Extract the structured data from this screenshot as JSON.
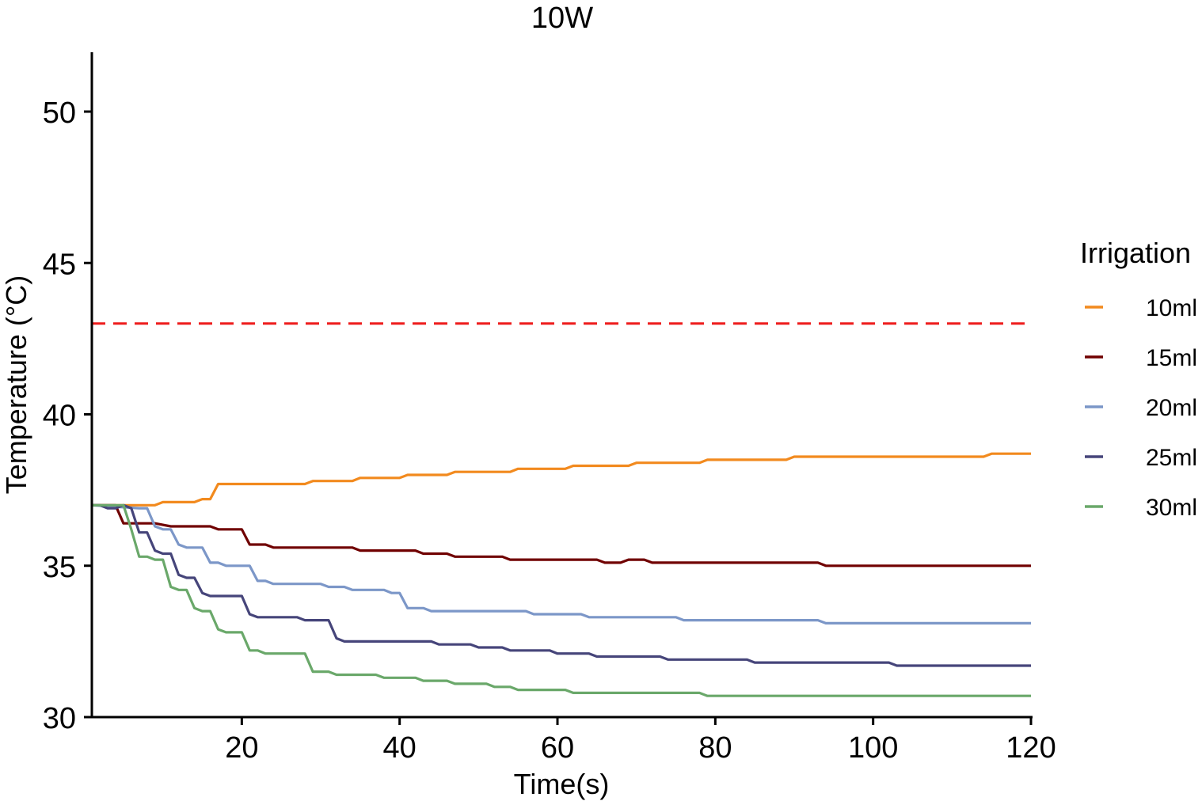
{
  "chart_data": {
    "type": "line",
    "title": "10W",
    "xlabel": "Time(s)",
    "ylabel": "Temperature (°C)",
    "xlim": [
      1,
      120
    ],
    "ylim": [
      30,
      52
    ],
    "x_ticks": [
      20,
      40,
      60,
      80,
      100,
      120
    ],
    "y_ticks": [
      30,
      35,
      40,
      45,
      50
    ],
    "grid": false,
    "legend": {
      "title": "Irrigation",
      "position": "right"
    },
    "reference_line": {
      "y": 43,
      "style": "dashed",
      "color": "#ee1c1c"
    },
    "series": [
      {
        "name": "10ml",
        "color": "#f28a1e",
        "points": [
          [
            1,
            37
          ],
          [
            9,
            37
          ],
          [
            10,
            37.1
          ],
          [
            14,
            37.1
          ],
          [
            15,
            37.2
          ],
          [
            16,
            37.2
          ],
          [
            17,
            37.7
          ],
          [
            28,
            37.7
          ],
          [
            29,
            37.8
          ],
          [
            34,
            37.8
          ],
          [
            35,
            37.9
          ],
          [
            40,
            37.9
          ],
          [
            41,
            38
          ],
          [
            46,
            38
          ],
          [
            47,
            38.1
          ],
          [
            54,
            38.1
          ],
          [
            55,
            38.2
          ],
          [
            61,
            38.2
          ],
          [
            62,
            38.3
          ],
          [
            69,
            38.3
          ],
          [
            70,
            38.4
          ],
          [
            78,
            38.4
          ],
          [
            79,
            38.5
          ],
          [
            89,
            38.5
          ],
          [
            90,
            38.6
          ],
          [
            114,
            38.6
          ],
          [
            115,
            38.7
          ],
          [
            120,
            38.7
          ]
        ]
      },
      {
        "name": "15ml",
        "color": "#700000",
        "points": [
          [
            1,
            37
          ],
          [
            4,
            37
          ],
          [
            5,
            36.4
          ],
          [
            8,
            36.4
          ],
          [
            9,
            36.4
          ],
          [
            11,
            36.3
          ],
          [
            16,
            36.3
          ],
          [
            17,
            36.2
          ],
          [
            20,
            36.2
          ],
          [
            21,
            35.7
          ],
          [
            23,
            35.7
          ],
          [
            24,
            35.6
          ],
          [
            34,
            35.6
          ],
          [
            35,
            35.5
          ],
          [
            42,
            35.5
          ],
          [
            43,
            35.4
          ],
          [
            46,
            35.4
          ],
          [
            47,
            35.3
          ],
          [
            53,
            35.3
          ],
          [
            54,
            35.2
          ],
          [
            65,
            35.2
          ],
          [
            66,
            35.1
          ],
          [
            68,
            35.1
          ],
          [
            69,
            35.2
          ],
          [
            71,
            35.2
          ],
          [
            72,
            35.1
          ],
          [
            93,
            35.1
          ],
          [
            94,
            35
          ],
          [
            120,
            35
          ]
        ]
      },
      {
        "name": "20ml",
        "color": "#7c97c8",
        "points": [
          [
            1,
            37
          ],
          [
            7,
            36.9
          ],
          [
            8,
            36.9
          ],
          [
            9,
            36.3
          ],
          [
            10,
            36.2
          ],
          [
            11,
            36.2
          ],
          [
            12,
            35.7
          ],
          [
            13,
            35.6
          ],
          [
            15,
            35.6
          ],
          [
            16,
            35.1
          ],
          [
            17,
            35.1
          ],
          [
            18,
            35
          ],
          [
            21,
            35
          ],
          [
            22,
            34.5
          ],
          [
            23,
            34.5
          ],
          [
            24,
            34.4
          ],
          [
            30,
            34.4
          ],
          [
            31,
            34.3
          ],
          [
            33,
            34.3
          ],
          [
            34,
            34.2
          ],
          [
            38,
            34.2
          ],
          [
            39,
            34.1
          ],
          [
            40,
            34.1
          ],
          [
            41,
            33.6
          ],
          [
            43,
            33.6
          ],
          [
            44,
            33.5
          ],
          [
            56,
            33.5
          ],
          [
            57,
            33.4
          ],
          [
            63,
            33.4
          ],
          [
            64,
            33.3
          ],
          [
            75,
            33.3
          ],
          [
            76,
            33.2
          ],
          [
            93,
            33.2
          ],
          [
            94,
            33.1
          ],
          [
            120,
            33.1
          ]
        ]
      },
      {
        "name": "25ml",
        "color": "#46457a",
        "points": [
          [
            1,
            37
          ],
          [
            2,
            37
          ],
          [
            3,
            36.9
          ],
          [
            4,
            36.9
          ],
          [
            5,
            37
          ],
          [
            6,
            36.9
          ],
          [
            7,
            36.1
          ],
          [
            8,
            36.1
          ],
          [
            9,
            35.5
          ],
          [
            10,
            35.4
          ],
          [
            11,
            35.4
          ],
          [
            12,
            34.7
          ],
          [
            13,
            34.6
          ],
          [
            14,
            34.6
          ],
          [
            15,
            34.1
          ],
          [
            16,
            34
          ],
          [
            20,
            34
          ],
          [
            21,
            33.4
          ],
          [
            22,
            33.3
          ],
          [
            27,
            33.3
          ],
          [
            28,
            33.2
          ],
          [
            31,
            33.2
          ],
          [
            32,
            32.6
          ],
          [
            33,
            32.5
          ],
          [
            44,
            32.5
          ],
          [
            45,
            32.4
          ],
          [
            49,
            32.4
          ],
          [
            50,
            32.3
          ],
          [
            53,
            32.3
          ],
          [
            54,
            32.2
          ],
          [
            59,
            32.2
          ],
          [
            60,
            32.1
          ],
          [
            64,
            32.1
          ],
          [
            65,
            32
          ],
          [
            73,
            32
          ],
          [
            74,
            31.9
          ],
          [
            84,
            31.9
          ],
          [
            85,
            31.8
          ],
          [
            102,
            31.8
          ],
          [
            103,
            31.7
          ],
          [
            120,
            31.7
          ]
        ]
      },
      {
        "name": "30ml",
        "color": "#6aa86a",
        "points": [
          [
            1,
            37
          ],
          [
            5,
            37
          ],
          [
            6,
            36.2
          ],
          [
            7,
            35.3
          ],
          [
            8,
            35.3
          ],
          [
            9,
            35.2
          ],
          [
            10,
            35.2
          ],
          [
            11,
            34.3
          ],
          [
            12,
            34.2
          ],
          [
            13,
            34.2
          ],
          [
            14,
            33.6
          ],
          [
            15,
            33.5
          ],
          [
            16,
            33.5
          ],
          [
            17,
            32.9
          ],
          [
            18,
            32.8
          ],
          [
            20,
            32.8
          ],
          [
            21,
            32.2
          ],
          [
            22,
            32.2
          ],
          [
            23,
            32.1
          ],
          [
            28,
            32.1
          ],
          [
            29,
            31.5
          ],
          [
            31,
            31.5
          ],
          [
            32,
            31.4
          ],
          [
            37,
            31.4
          ],
          [
            38,
            31.3
          ],
          [
            42,
            31.3
          ],
          [
            43,
            31.2
          ],
          [
            46,
            31.2
          ],
          [
            47,
            31.1
          ],
          [
            51,
            31.1
          ],
          [
            52,
            31
          ],
          [
            54,
            31
          ],
          [
            55,
            30.9
          ],
          [
            61,
            30.9
          ],
          [
            62,
            30.8
          ],
          [
            78,
            30.8
          ],
          [
            79,
            30.7
          ],
          [
            120,
            30.7
          ]
        ]
      }
    ]
  }
}
